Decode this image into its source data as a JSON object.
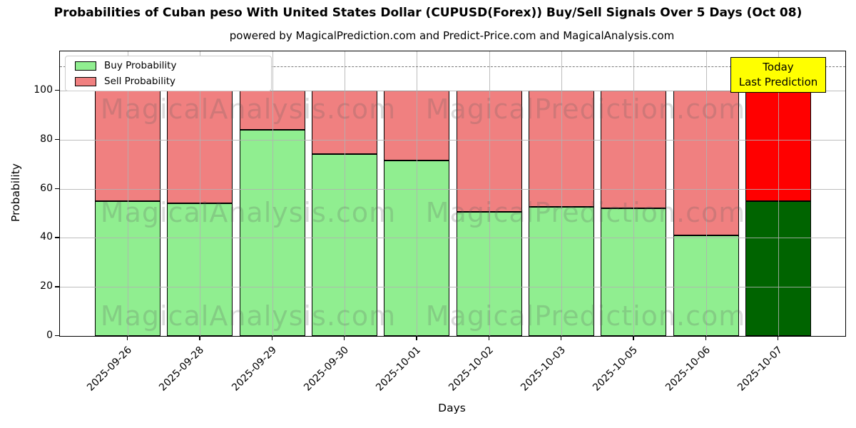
{
  "chart_data": {
    "type": "bar",
    "stacked": true,
    "title": "Probabilities of Cuban peso With United States Dollar (CUPUSD(Forex)) Buy/Sell Signals Over 5 Days (Oct 08)",
    "subtitle": "powered by MagicalPrediction.com and Predict-Price.com and MagicalAnalysis.com",
    "xlabel": "Days",
    "ylabel": "Probability",
    "categories": [
      "2025-09-26",
      "2025-09-28",
      "2025-09-29",
      "2025-09-30",
      "2025-10-01",
      "2025-10-02",
      "2025-10-03",
      "2025-10-05",
      "2025-10-06",
      "2025-10-07"
    ],
    "series": [
      {
        "name": "Buy Probability",
        "color": "#90EE90",
        "today_color": "#006400",
        "values": [
          55,
          54,
          84,
          74,
          71.5,
          50.5,
          52.5,
          52,
          41,
          55
        ]
      },
      {
        "name": "Sell Probability",
        "color": "#F08080",
        "today_color": "#FF0000",
        "values": [
          45,
          46,
          16,
          26,
          28.5,
          49.5,
          47.5,
          48,
          59,
          45
        ]
      }
    ],
    "ylim": [
      0,
      116
    ],
    "yticks": [
      0,
      20,
      40,
      60,
      80,
      100
    ],
    "dashed_line_y": 110,
    "grid": true,
    "legend_position": "upper-left",
    "annotation": {
      "lines": [
        "Today",
        "Last Prediction"
      ],
      "bg": "#FFFF00",
      "x_index": 9
    },
    "watermarks": [
      "MagicalAnalysis.com",
      "MagicalPrediction.com"
    ],
    "colors": {
      "grid": "#b2b2b2",
      "dashed_line": "#7a7a7a",
      "bar_edge": "#000000",
      "annotation_border": "#000000"
    }
  }
}
